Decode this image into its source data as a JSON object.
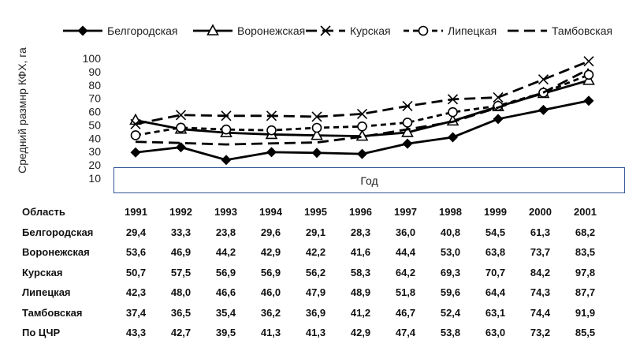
{
  "chart_data": {
    "type": "line",
    "ylabel": "Средний размнр КФХ, га",
    "xlabel": "Год",
    "yticks": [
      "100",
      "90",
      "80",
      "70",
      "60",
      "50",
      "40",
      "30",
      "20",
      "10"
    ],
    "ylim": [
      10,
      100
    ],
    "grid": false,
    "legend_position": "top",
    "categories": [
      "1991",
      "1992",
      "1993",
      "1994",
      "1995",
      "1996",
      "1997",
      "1998",
      "1999",
      "2000",
      "2001"
    ],
    "series": [
      {
        "name": "Белгородская",
        "values": [
          29.4,
          33.3,
          23.8,
          29.6,
          29.1,
          28.3,
          36.0,
          40.8,
          54.5,
          61.3,
          68.2
        ],
        "marker": "filled-diamond",
        "dash": "solid"
      },
      {
        "name": "Воронежская",
        "values": [
          53.6,
          46.9,
          44.2,
          42.9,
          42.2,
          41.6,
          44.4,
          53.0,
          63.8,
          73.7,
          83.5
        ],
        "marker": "open-triangle",
        "dash": "solid"
      },
      {
        "name": "Курская",
        "values": [
          50.7,
          57.5,
          56.9,
          56.9,
          56.2,
          58.3,
          64.2,
          69.3,
          70.7,
          84.2,
          97.8
        ],
        "marker": "x",
        "dash": "long-dash"
      },
      {
        "name": "Липецкая",
        "values": [
          42.3,
          48.0,
          46.6,
          46.0,
          47.9,
          48.9,
          51.8,
          59.6,
          64.4,
          74.3,
          87.7
        ],
        "marker": "open-circle",
        "dash": "short-dash"
      },
      {
        "name": "Тамбовская",
        "values": [
          37.4,
          36.5,
          35.4,
          36.2,
          36.9,
          41.2,
          46.7,
          52.4,
          63.1,
          74.4,
          91.9
        ],
        "marker": "none",
        "dash": "long-dash"
      }
    ],
    "table": {
      "header_label": "Область",
      "rows": [
        {
          "label": "Белгородская",
          "values": [
            "29,4",
            "33,3",
            "23,8",
            "29,6",
            "29,1",
            "28,3",
            "36,0",
            "40,8",
            "54,5",
            "61,3",
            "68,2"
          ]
        },
        {
          "label": "Воронежская",
          "values": [
            "53,6",
            "46,9",
            "44,2",
            "42,9",
            "42,2",
            "41,6",
            "44,4",
            "53,0",
            "63,8",
            "73,7",
            "83,5"
          ]
        },
        {
          "label": "Курская",
          "values": [
            "50,7",
            "57,5",
            "56,9",
            "56,9",
            "56,2",
            "58,3",
            "64,2",
            "69,3",
            "70,7",
            "84,2",
            "97,8"
          ]
        },
        {
          "label": "Липецкая",
          "values": [
            "42,3",
            "48,0",
            "46,6",
            "46,0",
            "47,9",
            "48,9",
            "51,8",
            "59,6",
            "64,4",
            "74,3",
            "87,7"
          ]
        },
        {
          "label": "Тамбовская",
          "values": [
            "37,4",
            "36,5",
            "35,4",
            "36,2",
            "36,9",
            "41,2",
            "46,7",
            "52,4",
            "63,1",
            "74,4",
            "91,9"
          ]
        },
        {
          "label": "По ЦЧР",
          "values": [
            "43,3",
            "42,7",
            "39,5",
            "41,3",
            "41,3",
            "42,9",
            "47,4",
            "53,8",
            "63,0",
            "73,2",
            "85,5"
          ]
        }
      ]
    }
  }
}
